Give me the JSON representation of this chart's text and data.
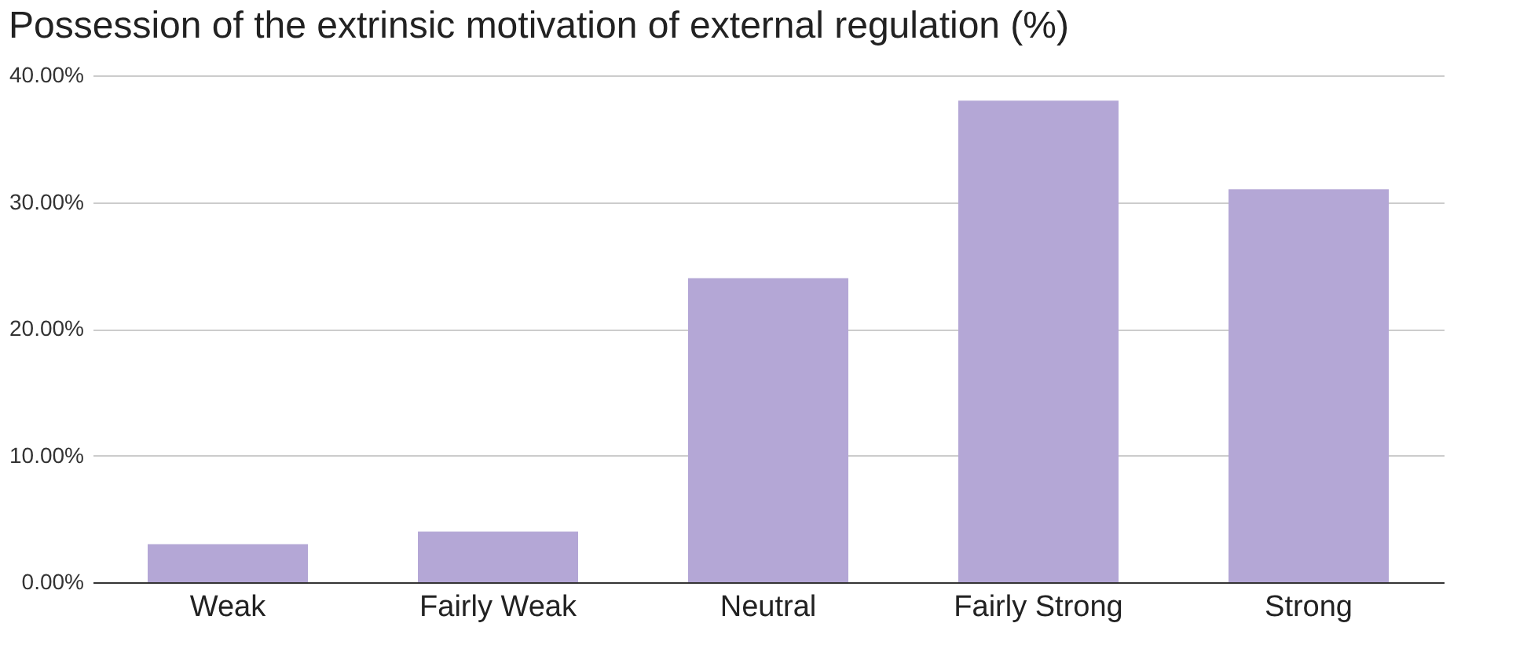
{
  "chart_data": {
    "type": "bar",
    "title": "Possession of the extrinsic motivation of external regulation (%)",
    "categories": [
      "Weak",
      "Fairly Weak",
      "Neutral",
      "Fairly Strong",
      "Strong"
    ],
    "values": [
      3,
      4,
      24,
      38,
      31
    ],
    "color": "#b4a7d6",
    "ylim": [
      0,
      40
    ],
    "yticks": [
      {
        "value": 0,
        "label": "0.00%"
      },
      {
        "value": 10,
        "label": "10.00%"
      },
      {
        "value": 20,
        "label": "20.00%"
      },
      {
        "value": 30,
        "label": "30.00%"
      },
      {
        "value": 40,
        "label": "40.00%"
      }
    ],
    "grid": "y"
  }
}
